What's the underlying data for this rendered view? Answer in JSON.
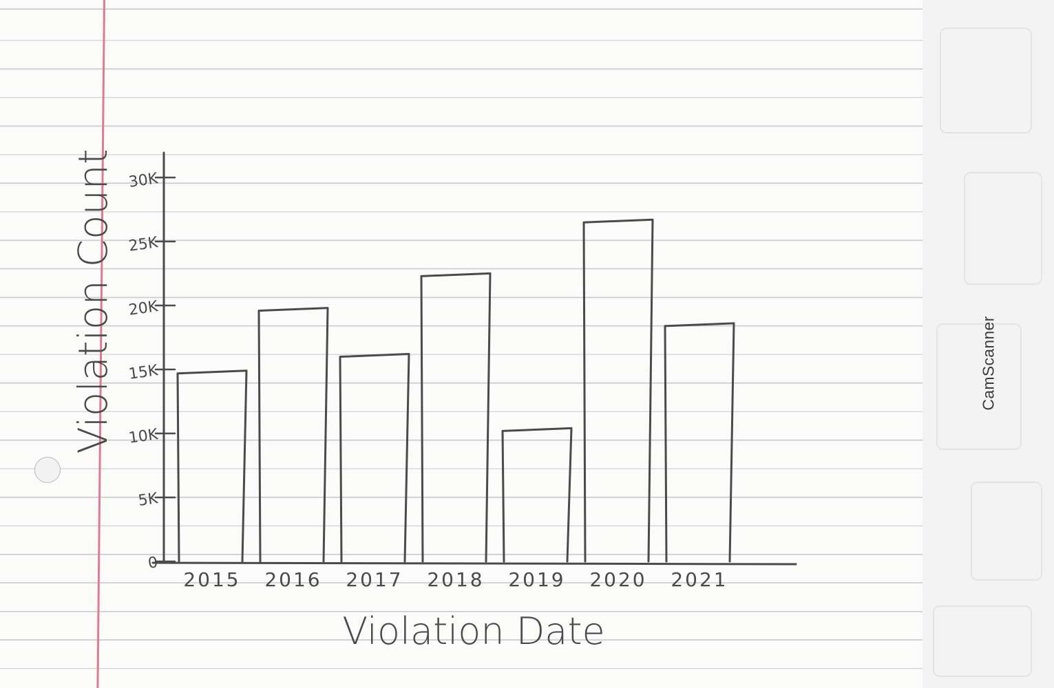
{
  "watermark": "CamScanner",
  "chart_data": {
    "type": "bar",
    "title": "",
    "xlabel": "Violation Date",
    "ylabel": "Violation Count",
    "categories": [
      "2015",
      "2016",
      "2017",
      "2018",
      "2019",
      "2020",
      "2021"
    ],
    "values": [
      14800,
      19700,
      16100,
      22400,
      10300,
      26600,
      18500
    ],
    "ylim": [
      0,
      30000
    ],
    "yticks": [
      {
        "value": 0,
        "label": "0"
      },
      {
        "value": 5000,
        "label": "5K"
      },
      {
        "value": 10000,
        "label": "10K"
      },
      {
        "value": 15000,
        "label": "15K"
      },
      {
        "value": 20000,
        "label": "20K"
      },
      {
        "value": 25000,
        "label": "25K"
      },
      {
        "value": 30000,
        "label": "30K"
      }
    ],
    "grid": false,
    "legend": "none",
    "colors": {
      "ink": "#4a4a4a",
      "bar_fill": "none"
    }
  }
}
